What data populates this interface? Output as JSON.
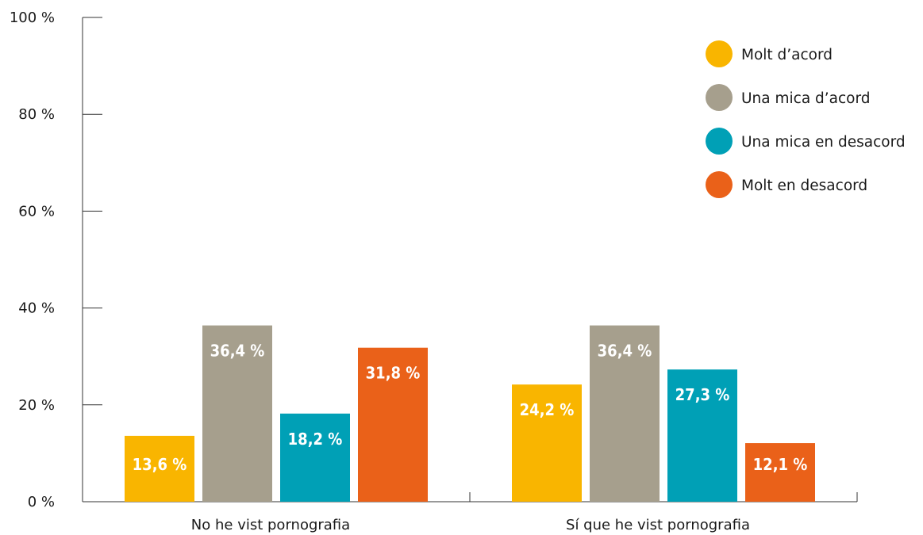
{
  "chart_data": {
    "type": "bar",
    "title": "",
    "xlabel": "",
    "ylabel": "",
    "ylim": [
      0,
      100
    ],
    "y_ticks": [
      0,
      20,
      40,
      60,
      80,
      100
    ],
    "y_tick_labels": [
      "0 %",
      "20 %",
      "40 %",
      "60 %",
      "80 %",
      "100 %"
    ],
    "categories": [
      "No he vist pornografia",
      "Sí que he vist pornografia"
    ],
    "series": [
      {
        "name": "Molt d’acord",
        "color": "#F9B500",
        "values": [
          13.6,
          24.2
        ],
        "labels": [
          "13,6 %",
          "24,2 %"
        ]
      },
      {
        "name": "Una mica d’acord",
        "color": "#A69F8D",
        "values": [
          36.4,
          36.4
        ],
        "labels": [
          "36,4 %",
          "36,4 %"
        ]
      },
      {
        "name": "Una mica en desacord",
        "color": "#00A0B6",
        "values": [
          18.2,
          27.3
        ],
        "labels": [
          "18,2 %",
          "27,3 %"
        ]
      },
      {
        "name": "Molt en desacord",
        "color": "#EA6119",
        "values": [
          31.8,
          12.1
        ],
        "labels": [
          "31,8 %",
          "12,1 %"
        ]
      }
    ],
    "grid": false,
    "legend_position": "top-right"
  }
}
